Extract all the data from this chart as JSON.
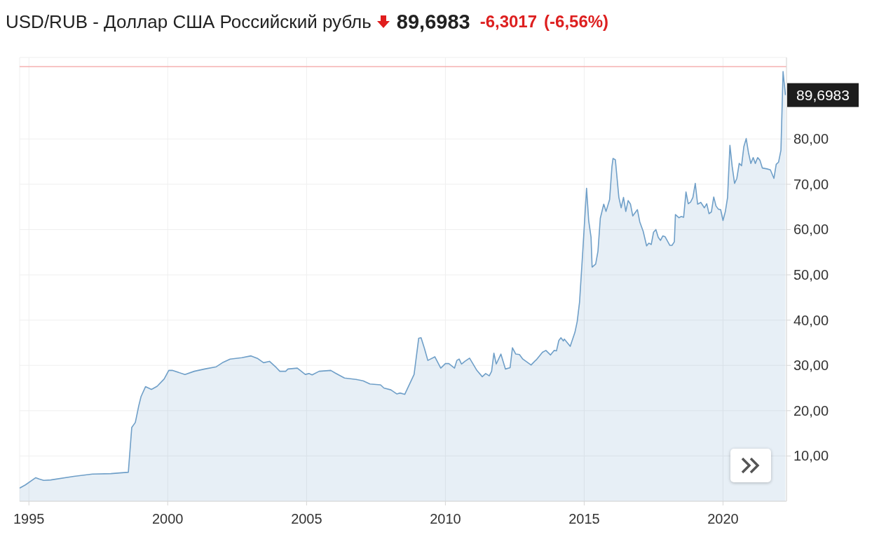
{
  "chart_data": {
    "type": "area",
    "title": "USD/RUB - Доллар США Российский рубль",
    "annotations": [
      "89,6983",
      "-6,3017",
      "(-6,56%)",
      {
        "text": "89,6983",
        "x": "2022-04-01",
        "y": 89.6983
      }
    ],
    "x": [
      "1994-09-01",
      "1994-11-15",
      "1995-04-01",
      "1995-05-15",
      "1995-07-15",
      "1995-10-15",
      "1996-08-15",
      "1997-04-15",
      "1997-12-15",
      "1998-08-01",
      "1998-09-15",
      "1998-11-01",
      "1998-12-15",
      "1999-01-15",
      "1999-03-15",
      "1999-06-01",
      "1999-08-15",
      "1999-11-15",
      "2000-01-15",
      "2000-03-01",
      "2000-08-15",
      "2000-12-15",
      "2001-05-01",
      "2001-10-01",
      "2002-01-01",
      "2002-04-01",
      "2002-09-01",
      "2003-01-01",
      "2003-04-01",
      "2003-06-15",
      "2003-09-01",
      "2003-12-01",
      "2004-01-15",
      "2004-04-01",
      "2004-05-01",
      "2004-09-01",
      "2004-12-15",
      "2005-02-01",
      "2005-03-15",
      "2005-06-15",
      "2005-11-15",
      "2006-01-15",
      "2006-05-15",
      "2006-10-15",
      "2007-01-15",
      "2007-04-15",
      "2007-09-01",
      "2007-10-15",
      "2008-01-15",
      "2008-04-01",
      "2008-05-15",
      "2008-07-15",
      "2008-11-15",
      "2009-01-15",
      "2009-02-15",
      "2009-04-01",
      "2009-05-15",
      "2009-08-15",
      "2009-11-01",
      "2010-01-01",
      "2010-02-15",
      "2010-05-01",
      "2010-06-01",
      "2010-07-01",
      "2010-08-01",
      "2010-09-15",
      "2010-11-15",
      "2011-02-15",
      "2011-05-01",
      "2011-06-15",
      "2011-08-01",
      "2011-09-01",
      "2011-10-01",
      "2011-11-01",
      "2012-01-01",
      "2012-03-01",
      "2012-05-01",
      "2012-06-01",
      "2012-07-15",
      "2012-09-01",
      "2012-10-15",
      "2013-02-01",
      "2013-04-01",
      "2013-04-15",
      "2013-07-01",
      "2013-08-15",
      "2013-10-15",
      "2013-12-01",
      "2014-01-01",
      "2014-02-01",
      "2014-03-01",
      "2014-04-01",
      "2014-04-15",
      "2014-07-01",
      "2014-09-01",
      "2014-10-01",
      "2014-11-01",
      "2014-12-15",
      "2015-02-01",
      "2015-03-01",
      "2015-04-01",
      "2015-04-15",
      "2015-06-01",
      "2015-07-01",
      "2015-08-01",
      "2015-09-15",
      "2015-10-15",
      "2015-12-01",
      "2016-01-01",
      "2016-01-15",
      "2016-02-15",
      "2016-04-01",
      "2016-05-01",
      "2016-06-01",
      "2016-07-01",
      "2016-08-01",
      "2016-09-01",
      "2016-10-01",
      "2016-12-01",
      "2017-01-01",
      "2017-02-15",
      "2017-04-01",
      "2017-05-01",
      "2017-06-01",
      "2017-07-01",
      "2017-08-01",
      "2017-09-01",
      "2017-10-01",
      "2017-11-01",
      "2017-12-01",
      "2018-02-01",
      "2018-03-01",
      "2018-04-01",
      "2018-04-15",
      "2018-06-01",
      "2018-07-01",
      "2018-08-01",
      "2018-09-01",
      "2018-10-01",
      "2018-11-01",
      "2018-12-01",
      "2019-01-01",
      "2019-02-01",
      "2019-03-15",
      "2019-05-01",
      "2019-06-01",
      "2019-07-01",
      "2019-08-01",
      "2019-09-01",
      "2019-10-01",
      "2019-11-01",
      "2019-12-01",
      "2020-01-01",
      "2020-02-01",
      "2020-03-01",
      "2020-04-01",
      "2020-05-01",
      "2020-06-01",
      "2020-07-01",
      "2020-08-01",
      "2020-09-01",
      "2020-10-01",
      "2020-11-01",
      "2020-12-01",
      "2021-01-01",
      "2021-02-01",
      "2021-03-01",
      "2021-04-01",
      "2021-05-01",
      "2021-06-01",
      "2021-08-01",
      "2021-09-15",
      "2021-11-01",
      "2021-12-01",
      "2022-01-01",
      "2022-02-01",
      "2022-03-01",
      "2022-04-01"
    ],
    "values": [
      2.9,
      3.6,
      5.2,
      4.9,
      4.6,
      4.7,
      5.5,
      6.0,
      6.1,
      6.4,
      16.3,
      17.4,
      21.0,
      23.1,
      25.3,
      24.7,
      25.4,
      27.0,
      28.9,
      28.9,
      28.0,
      28.7,
      29.2,
      29.7,
      30.7,
      31.4,
      31.7,
      32.1,
      31.5,
      30.6,
      30.9,
      29.5,
      28.7,
      28.7,
      29.2,
      29.4,
      28.0,
      28.2,
      27.9,
      28.7,
      28.9,
      28.3,
      27.2,
      26.9,
      26.6,
      25.9,
      25.7,
      25.0,
      24.6,
      23.7,
      23.9,
      23.6,
      28.0,
      36.0,
      36.1,
      33.7,
      31.1,
      31.9,
      29.4,
      30.4,
      30.4,
      29.4,
      31.1,
      31.4,
      30.3,
      30.9,
      31.6,
      29.0,
      27.5,
      28.2,
      27.7,
      28.7,
      32.7,
      30.3,
      32.5,
      29.2,
      29.5,
      33.9,
      32.5,
      32.4,
      31.4,
      30.1,
      31.1,
      31.3,
      32.9,
      33.3,
      32.3,
      33.3,
      33.2,
      35.5,
      36.1,
      35.4,
      35.8,
      34.2,
      37.3,
      39.7,
      44.0,
      55.7,
      69.1,
      62.0,
      58.3,
      51.7,
      52.4,
      55.2,
      62.5,
      65.6,
      64.0,
      66.6,
      73.9,
      75.7,
      75.4,
      67.1,
      64.8,
      67.1,
      64.0,
      66.4,
      65.6,
      63.0,
      64.4,
      61.7,
      59.6,
      56.4,
      57.0,
      56.7,
      59.4,
      60.0,
      58.3,
      57.6,
      58.6,
      58.4,
      56.5,
      56.5,
      57.3,
      63.3,
      62.6,
      62.9,
      62.7,
      68.3,
      65.7,
      66.1,
      67.1,
      70.2,
      65.6,
      66.0,
      64.8,
      65.7,
      63.5,
      63.9,
      67.2,
      65.2,
      64.5,
      64.4,
      62.0,
      64.0,
      67.1,
      78.6,
      73.9,
      70.2,
      71.3,
      74.6,
      74.1,
      78.3,
      80.1,
      77.0,
      74.6,
      75.9,
      74.6,
      75.9,
      75.3,
      73.6,
      73.4,
      73.2,
      71.3,
      74.4,
      74.9,
      77.5,
      94.9,
      89.6983
    ],
    "color": "#6f9fc8",
    "xlim": [
      "1994-09-01",
      "2022-04-15"
    ],
    "xticks": [
      {
        "value": "1995",
        "label": "1995"
      },
      {
        "value": "2000",
        "label": "2000"
      },
      {
        "value": "2005",
        "label": "2005"
      },
      {
        "value": "2010",
        "label": "2010"
      },
      {
        "value": "2015",
        "label": "2015"
      },
      {
        "value": "2020",
        "label": "2020"
      }
    ],
    "ylim": [
      0,
      98
    ],
    "yticks": [
      {
        "value": 10,
        "label": "10,00"
      },
      {
        "value": 20,
        "label": "20,00"
      },
      {
        "value": 30,
        "label": "30,00"
      },
      {
        "value": 40,
        "label": "40,00"
      },
      {
        "value": 50,
        "label": "50,00"
      },
      {
        "value": 60,
        "label": "60,00"
      },
      {
        "value": 70,
        "label": "70,00"
      },
      {
        "value": 80,
        "label": "80,00"
      }
    ],
    "ref_lines": [
      {
        "axis": "y",
        "value": 96.0,
        "color": "#f4b0b0"
      }
    ],
    "grid": true
  }
}
